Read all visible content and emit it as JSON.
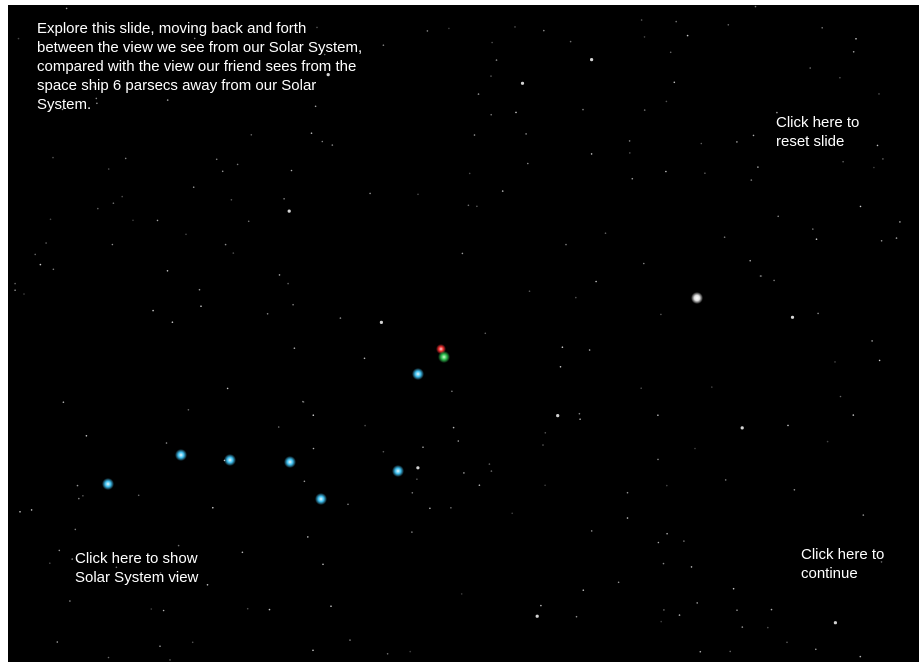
{
  "instructions": {
    "lines": [
      "Explore this slide, moving back and forth",
      "between the view we see from our Solar System,",
      "compared with the view our friend sees from the",
      "space ship 6 parsecs away from our Solar",
      "System."
    ]
  },
  "buttons": {
    "reset": {
      "lines": [
        "Click here to",
        "reset slide"
      ]
    },
    "solar_system_view": {
      "lines": [
        "Click here to show",
        "Solar System view"
      ]
    },
    "continue": {
      "lines": [
        "Click here to",
        "continue"
      ]
    }
  }
}
